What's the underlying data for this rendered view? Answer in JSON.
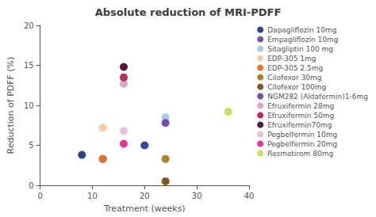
{
  "chart_data": {
    "type": "scatter",
    "title": "Absolute reduction of MRI-PDFF",
    "xlabel": "Treatment (weeks)",
    "ylabel": "Reduction of PDFF (%)",
    "xlim": [
      0,
      40
    ],
    "ylim": [
      0,
      20
    ],
    "xticks": [
      0,
      10,
      20,
      30,
      40
    ],
    "yticks": [
      0,
      5,
      10,
      15,
      20
    ],
    "grid": false,
    "legend": "upper right",
    "series": [
      {
        "name": "Dapagliflozin 10mg",
        "color": "#1b3a8a",
        "x": [
          8
        ],
        "values": [
          3.8
        ]
      },
      {
        "name": "Empagliflozin 10mg",
        "color": "#6b4fa0",
        "x": [
          12
        ],
        "values": [
          3.3
        ]
      },
      {
        "name": "Sitagliptin 100 mg",
        "color": "#aac4e0",
        "x": [
          24
        ],
        "values": [
          8.5
        ]
      },
      {
        "name": "EDP-305 1mg",
        "color": "#f5c8a0",
        "x": [
          12
        ],
        "values": [
          7.2
        ]
      },
      {
        "name": "EDP-305 2.5mg",
        "color": "#e87020",
        "x": [
          12
        ],
        "values": [
          3.3
        ]
      },
      {
        "name": "Cilofexor 30mg",
        "color": "#b07820",
        "x": [
          24
        ],
        "values": [
          3.3
        ]
      },
      {
        "name": "Cilofexor 100mg",
        "color": "#7a5010",
        "x": [
          24
        ],
        "values": [
          0.5
        ]
      },
      {
        "name": "NGM282 (Aldafermin)1-6mg",
        "color": "#7040b0",
        "x": [
          24
        ],
        "values": [
          7.8
        ]
      },
      {
        "name": "Efruxifermin 28mg",
        "color": "#d8a0cc",
        "x": [
          16
        ],
        "values": [
          12.7
        ]
      },
      {
        "name": "Efruxifermin 50mg",
        "color": "#b82050",
        "x": [
          16
        ],
        "values": [
          13.5
        ]
      },
      {
        "name": "Efruxifermin70mg",
        "color": "#500830",
        "x": [
          16
        ],
        "values": [
          14.8
        ]
      },
      {
        "name": "Pegbelfermin 10mg",
        "color": "#f0b8d8",
        "x": [
          16
        ],
        "values": [
          6.8
        ]
      },
      {
        "name": "Pegbelfermin 20mg",
        "color": "#e82888",
        "x": [
          16
        ],
        "values": [
          5.2
        ]
      },
      {
        "name": "Resmetirom 80mg",
        "color": "#c8e050",
        "x": [
          36
        ],
        "values": [
          9.2
        ]
      },
      {
        "color": "#2040a0",
        "x": [
          20
        ],
        "values": [
          5.0
        ]
      }
    ]
  }
}
